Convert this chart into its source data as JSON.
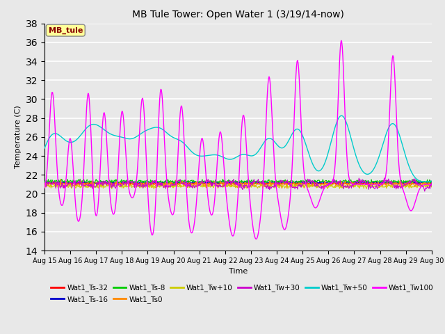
{
  "title": "MB Tule Tower: Open Water 1 (3/19/14-now)",
  "xlabel": "Time",
  "ylabel": "Temperature (C)",
  "ylim": [
    14,
    38
  ],
  "yticks": [
    14,
    16,
    18,
    20,
    22,
    24,
    26,
    28,
    30,
    32,
    34,
    36,
    38
  ],
  "background_color": "#e8e8e8",
  "plot_bg_color": "#e8e8e8",
  "series_colors": {
    "Wat1_Ts-32": "#ff0000",
    "Wat1_Ts-16": "#0000cc",
    "Wat1_Ts-8": "#00cc00",
    "Wat1_Ts0": "#ff8800",
    "Wat1_Tw+10": "#cccc00",
    "Wat1_Tw+30": "#cc00cc",
    "Wat1_Tw+50": "#00cccc",
    "Wat1_Tw100": "#ff00ff"
  },
  "legend_label": "MB_tule",
  "legend_box_color": "#ffff99",
  "legend_text_color": "#880000",
  "tw100_peaks": [
    31.5,
    27.5,
    32.0,
    29.9,
    29.7,
    30.7,
    32.5,
    30.6,
    26.6,
    27.5,
    28.9,
    32.5,
    34.2,
    36.2,
    34.6
  ],
  "tw100_troughs": [
    20.0,
    18.5,
    16.8,
    16.8,
    17.5,
    19.5,
    15.2,
    17.5,
    15.8,
    17.5,
    15.5,
    15.2,
    16.2,
    18.5,
    18.2
  ],
  "peak_positions": [
    0.3,
    1.0,
    1.7,
    2.3,
    3.0,
    3.8,
    4.5,
    5.3,
    6.1,
    6.8,
    7.7,
    8.7,
    9.8,
    11.5,
    13.5
  ],
  "trough_positions": [
    0.1,
    0.7,
    1.3,
    2.0,
    2.7,
    3.4,
    4.2,
    5.0,
    5.7,
    6.5,
    7.3,
    8.2,
    9.3,
    10.5,
    14.2
  ]
}
